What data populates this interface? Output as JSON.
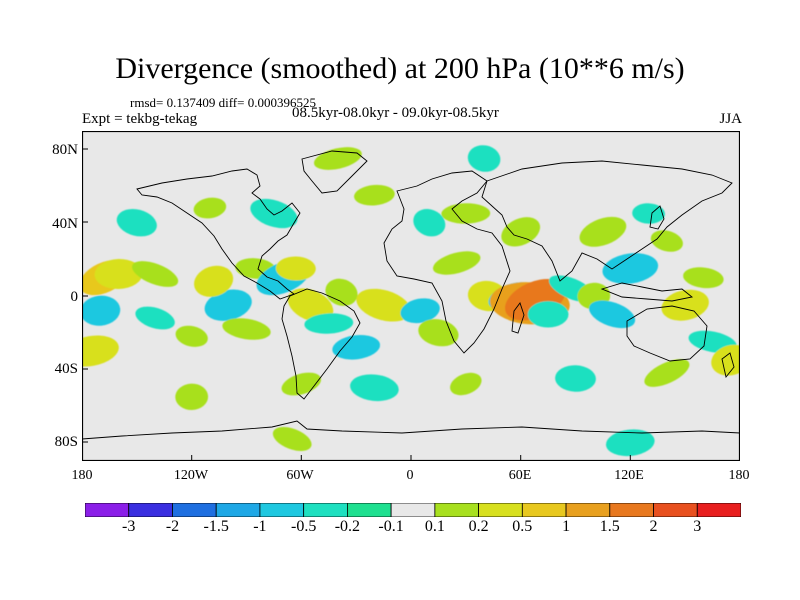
{
  "title": "Divergence (smoothed) at 200 hPa (10**6 m/s)",
  "stats": "rmsd= 0.137409 diff= 0.000396525",
  "experiment": "Expt = tekbg-tekag",
  "subtitle": "08.5kyr-08.0kyr - 09.0kyr-08.5kyr",
  "season": "JJA",
  "y_ticks": [
    "80N",
    "40N",
    "0",
    "40S",
    "80S"
  ],
  "x_ticks": [
    "180",
    "120W",
    "60W",
    "0",
    "60E",
    "120E",
    "180"
  ],
  "map_data": {
    "type": "filled-contour map",
    "projection": "cylindrical equidistant",
    "lon_range": [
      -180,
      180
    ],
    "lat_range": [
      -90,
      90
    ],
    "background_color": "#e8e8e8",
    "coastline_color": "#000000",
    "blobs": [
      {
        "lon": -168,
        "lat": 10,
        "value": 1.0
      },
      {
        "lon": -160,
        "lat": 12,
        "value": 0.5
      },
      {
        "lon": -140,
        "lat": 12,
        "value": 0.2
      },
      {
        "lon": -170,
        "lat": -8,
        "value": -0.5
      },
      {
        "lon": -140,
        "lat": -12,
        "value": -0.2
      },
      {
        "lon": -175,
        "lat": -30,
        "value": 0.5
      },
      {
        "lon": -120,
        "lat": -22,
        "value": 0.2
      },
      {
        "lon": -100,
        "lat": -5,
        "value": -0.5
      },
      {
        "lon": -90,
        "lat": -18,
        "value": 0.2
      },
      {
        "lon": -108,
        "lat": 8,
        "value": 0.5
      },
      {
        "lon": -85,
        "lat": 15,
        "value": 0.2
      },
      {
        "lon": -70,
        "lat": 10,
        "value": -0.5
      },
      {
        "lon": -63,
        "lat": 15,
        "value": 0.5
      },
      {
        "lon": -55,
        "lat": -5,
        "value": 0.5
      },
      {
        "lon": -45,
        "lat": -15,
        "value": -0.2
      },
      {
        "lon": -38,
        "lat": 2,
        "value": 0.2
      },
      {
        "lon": -30,
        "lat": -28,
        "value": -0.5
      },
      {
        "lon": -15,
        "lat": -5,
        "value": 0.5
      },
      {
        "lon": 5,
        "lat": -8,
        "value": -0.5
      },
      {
        "lon": 15,
        "lat": -20,
        "value": 0.2
      },
      {
        "lon": 25,
        "lat": 18,
        "value": 0.2
      },
      {
        "lon": 42,
        "lat": 0,
        "value": 0.5
      },
      {
        "lon": 55,
        "lat": 0,
        "value": -0.5
      },
      {
        "lon": 65,
        "lat": -4,
        "value": 1.5
      },
      {
        "lon": 68,
        "lat": -2,
        "value": 2.0
      },
      {
        "lon": 75,
        "lat": -10,
        "value": -0.2
      },
      {
        "lon": 88,
        "lat": 4,
        "value": -0.2
      },
      {
        "lon": 100,
        "lat": 0,
        "value": 0.2
      },
      {
        "lon": 110,
        "lat": -10,
        "value": -0.5
      },
      {
        "lon": 120,
        "lat": 15,
        "value": -0.5
      },
      {
        "lon": 140,
        "lat": 30,
        "value": 0.2
      },
      {
        "lon": 150,
        "lat": -5,
        "value": 0.5
      },
      {
        "lon": 165,
        "lat": -25,
        "value": -0.2
      },
      {
        "lon": 175,
        "lat": -35,
        "value": 0.5
      },
      {
        "lon": 160,
        "lat": 10,
        "value": 0.2
      },
      {
        "lon": 105,
        "lat": 35,
        "value": 0.2
      },
      {
        "lon": 130,
        "lat": 45,
        "value": -0.2
      },
      {
        "lon": 60,
        "lat": 35,
        "value": 0.2
      },
      {
        "lon": 30,
        "lat": 45,
        "value": 0.2
      },
      {
        "lon": 10,
        "lat": 40,
        "value": -0.2
      },
      {
        "lon": -20,
        "lat": 55,
        "value": 0.2
      },
      {
        "lon": -75,
        "lat": 45,
        "value": -0.2
      },
      {
        "lon": -110,
        "lat": 48,
        "value": 0.2
      },
      {
        "lon": -150,
        "lat": 40,
        "value": -0.2
      },
      {
        "lon": -40,
        "lat": 75,
        "value": 0.2
      },
      {
        "lon": 40,
        "lat": 75,
        "value": -0.2
      },
      {
        "lon": -60,
        "lat": -48,
        "value": 0.2
      },
      {
        "lon": -20,
        "lat": -50,
        "value": -0.2
      },
      {
        "lon": 30,
        "lat": -48,
        "value": 0.2
      },
      {
        "lon": 90,
        "lat": -45,
        "value": -0.2
      },
      {
        "lon": 140,
        "lat": -42,
        "value": 0.2
      },
      {
        "lon": -120,
        "lat": -55,
        "value": 0.2
      },
      {
        "lon": -65,
        "lat": -78,
        "value": 0.2
      },
      {
        "lon": 120,
        "lat": -80,
        "value": -0.2
      }
    ]
  },
  "colorbar": {
    "colors": [
      "#8b1fe8",
      "#3a2fe0",
      "#1f6fe0",
      "#1fa8e6",
      "#1fc8e0",
      "#1fe0c0",
      "#1fe090",
      "#e8e8e8",
      "#a8e01f",
      "#d8e01f",
      "#e8c81f",
      "#e8a01f",
      "#e8781f",
      "#e8501f",
      "#e81f1f"
    ],
    "labels": [
      "-3",
      "-2",
      "-1.5",
      "-1",
      "-0.5",
      "-0.2",
      "-0.1",
      "0.1",
      "0.2",
      "0.5",
      "1",
      "1.5",
      "2",
      "3"
    ]
  }
}
